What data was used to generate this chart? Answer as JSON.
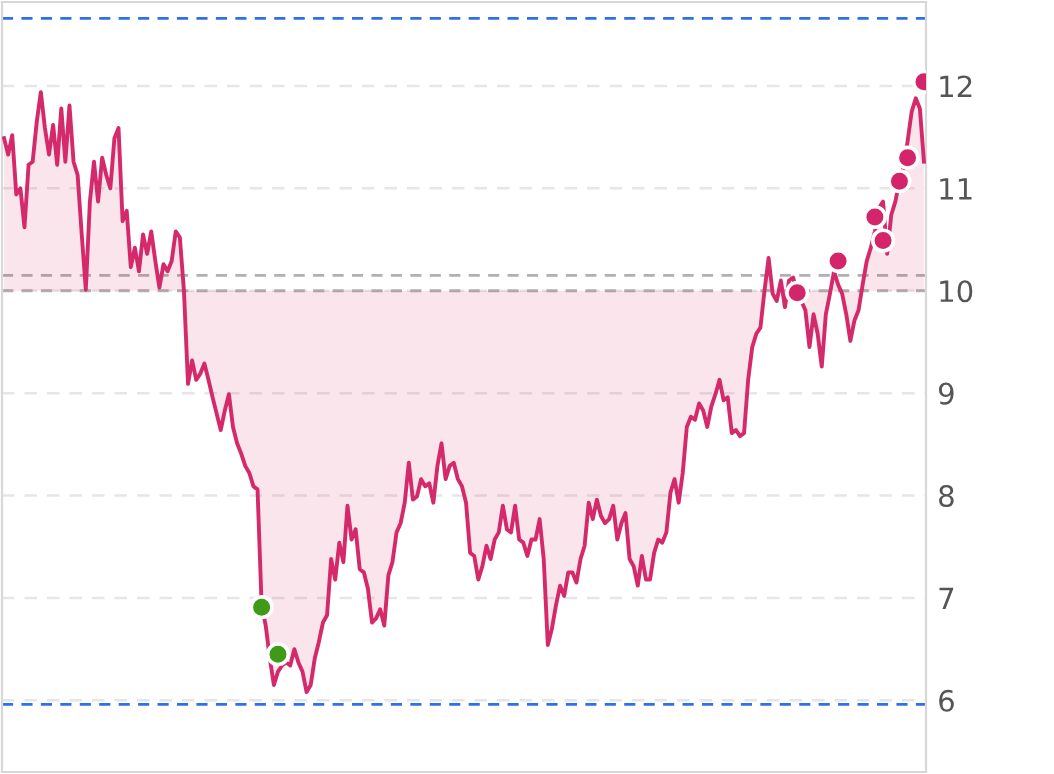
{
  "chart_data": {
    "type": "line",
    "categories": [
      null,
      null,
      null,
      null,
      null,
      null,
      null,
      null,
      null,
      null,
      null,
      null,
      null,
      null,
      null,
      null,
      null,
      null,
      null,
      null,
      null,
      null,
      null,
      null,
      null,
      null,
      null,
      null,
      null,
      null,
      null,
      null,
      null,
      null,
      null,
      null,
      null,
      null,
      null,
      null,
      null,
      null,
      null,
      null,
      null,
      null,
      null,
      null,
      null,
      null,
      null,
      null,
      null,
      null,
      null,
      null,
      null,
      null,
      null,
      null,
      null,
      null,
      null,
      null,
      null,
      null,
      null,
      null,
      null,
      null,
      null,
      null,
      null,
      null,
      null,
      null,
      null,
      null,
      null,
      null,
      null,
      null,
      null,
      null,
      null,
      null,
      null,
      null,
      null,
      null,
      null,
      null,
      null,
      null,
      null,
      null,
      null,
      null,
      null,
      null,
      null,
      null,
      null,
      null,
      null,
      null,
      null,
      null,
      null,
      null,
      null,
      null,
      null,
      null,
      null,
      null,
      null,
      null,
      null,
      null,
      null,
      null,
      null,
      null,
      null,
      null,
      null,
      null,
      null,
      null,
      null,
      null,
      null,
      null,
      null,
      null,
      null,
      null,
      null,
      null,
      null,
      null,
      null,
      null,
      null,
      null,
      null,
      null,
      null,
      null,
      null,
      null,
      null,
      null,
      null,
      null,
      null,
      null,
      null,
      null,
      null,
      null,
      null,
      null,
      null,
      null,
      null,
      null,
      null,
      null,
      null,
      null,
      null,
      null,
      null,
      null,
      null,
      null,
      null,
      null,
      null,
      null,
      null,
      null,
      null,
      null,
      null,
      null,
      null,
      null,
      null,
      null,
      null,
      null,
      null,
      null,
      null,
      null,
      null,
      null,
      null,
      null,
      null,
      null,
      null,
      null,
      null,
      null,
      null,
      null,
      null,
      null,
      null,
      null,
      null,
      null,
      null,
      null,
      null,
      null,
      null,
      null,
      null,
      null,
      null,
      null
    ],
    "ylim": [
      5.3,
      12.82
    ],
    "yticks": [
      6,
      7,
      8,
      9,
      10,
      11,
      12
    ],
    "tick_labels": "y",
    "grid": "y",
    "line_style": "solid",
    "ref_lines": [
      {
        "axis": "y",
        "value": 10.0,
        "color": "#b0b0b0",
        "line_style": "dashed"
      },
      {
        "axis": "y",
        "value": 10.15,
        "color": "#b0b0b0",
        "line_style": "dashed"
      },
      {
        "axis": "y",
        "value": 12.66,
        "color": "#2f6fe8",
        "line_style": "dashed"
      },
      {
        "axis": "y",
        "value": 5.96,
        "color": "#2f6fe8",
        "line_style": "dashed"
      }
    ],
    "series": [
      {
        "color": "#d42a6b",
        "values": [
          11.49,
          11.33,
          11.52,
          10.94,
          11.0,
          10.62,
          11.23,
          11.26,
          11.65,
          11.94,
          11.59,
          11.33,
          11.62,
          11.23,
          11.78,
          11.26,
          11.81,
          11.26,
          11.13,
          10.55,
          10.01,
          10.87,
          11.26,
          10.87,
          11.3,
          11.13,
          11.0,
          11.49,
          11.59,
          10.68,
          10.78,
          10.23,
          10.42,
          10.19,
          10.55,
          10.36,
          10.58,
          10.29,
          10.03,
          10.26,
          10.19,
          10.29,
          10.58,
          10.52,
          10.0,
          9.09,
          9.32,
          9.13,
          9.19,
          9.29,
          9.13,
          8.96,
          8.8,
          8.64,
          8.83,
          8.99,
          8.67,
          8.51,
          8.41,
          8.29,
          8.22,
          8.09,
          8.06,
          6.93,
          6.73,
          6.41,
          6.15,
          6.28,
          6.34,
          6.37,
          6.34,
          6.5,
          6.37,
          6.28,
          6.08,
          6.15,
          6.41,
          6.57,
          6.76,
          6.83,
          7.38,
          7.18,
          7.54,
          7.35,
          7.9,
          7.57,
          7.67,
          7.28,
          7.25,
          7.09,
          6.76,
          6.8,
          6.89,
          6.73,
          7.22,
          7.35,
          7.64,
          7.73,
          7.93,
          8.32,
          7.96,
          7.99,
          8.16,
          8.09,
          8.12,
          7.93,
          8.29,
          8.51,
          8.16,
          8.29,
          8.32,
          8.16,
          8.09,
          7.93,
          7.44,
          7.41,
          7.18,
          7.31,
          7.51,
          7.38,
          7.57,
          7.64,
          7.9,
          7.67,
          7.64,
          7.9,
          7.57,
          7.54,
          7.41,
          7.57,
          7.57,
          7.77,
          7.38,
          6.54,
          6.7,
          6.93,
          7.12,
          7.02,
          7.25,
          7.25,
          7.15,
          7.38,
          7.51,
          7.93,
          7.77,
          7.96,
          7.8,
          7.73,
          7.77,
          7.9,
          7.57,
          7.73,
          7.83,
          7.38,
          7.31,
          7.12,
          7.41,
          7.18,
          7.18,
          7.44,
          7.57,
          7.54,
          7.64,
          8.03,
          8.16,
          7.93,
          8.22,
          8.67,
          8.77,
          8.74,
          8.9,
          8.83,
          8.67,
          8.87,
          8.99,
          9.13,
          8.93,
          8.96,
          8.61,
          8.64,
          8.58,
          8.61,
          9.13,
          9.45,
          9.58,
          9.64,
          10.0,
          10.32,
          9.97,
          9.9,
          10.1,
          9.84,
          10.1,
          10.13,
          9.97,
          9.9,
          9.81,
          9.45,
          9.77,
          9.58,
          9.26,
          9.77,
          9.97,
          10.19,
          10.06,
          9.97,
          9.77,
          9.51,
          9.71,
          9.81,
          10.06,
          10.29,
          10.42,
          10.58,
          10.81,
          10.87,
          10.36,
          10.74,
          10.87,
          11.07,
          11.2,
          11.46,
          11.75,
          11.88,
          11.78,
          11.26
        ]
      },
      {
        "type": "scatter",
        "color": "#3f9a18",
        "values": [
          null,
          null,
          null,
          null,
          null,
          null,
          null,
          null,
          null,
          null,
          null,
          null,
          null,
          null,
          null,
          null,
          null,
          null,
          null,
          null,
          null,
          null,
          null,
          null,
          null,
          null,
          null,
          null,
          null,
          null,
          null,
          null,
          null,
          null,
          null,
          null,
          null,
          null,
          null,
          null,
          null,
          null,
          null,
          null,
          null,
          null,
          null,
          null,
          null,
          null,
          null,
          null,
          null,
          null,
          null,
          null,
          null,
          null,
          null,
          null,
          null,
          null,
          null,
          6.91,
          null,
          null,
          null,
          6.45,
          null,
          null,
          null,
          null,
          null,
          null,
          null,
          null,
          null,
          null,
          null,
          null,
          null,
          null,
          null,
          null,
          null,
          null,
          null,
          null,
          null,
          null,
          null,
          null,
          null,
          null,
          null,
          null,
          null,
          null,
          null,
          null,
          null,
          null,
          null,
          null,
          null,
          null,
          null,
          null,
          null,
          null,
          null,
          null,
          null,
          null,
          null,
          null,
          null,
          null,
          null,
          null,
          null,
          null,
          null,
          null,
          null,
          null,
          null,
          null,
          null,
          null,
          null,
          null,
          null,
          null,
          null,
          null,
          null,
          null,
          null,
          null,
          null,
          null,
          null,
          null,
          null,
          null,
          null,
          null,
          null,
          null,
          null,
          null,
          null,
          null,
          null,
          null,
          null,
          null,
          null,
          null,
          null,
          null,
          null,
          null,
          null,
          null,
          null,
          null,
          null,
          null,
          null,
          null,
          null,
          null,
          null,
          null,
          null,
          null,
          null,
          null,
          null,
          null,
          null,
          null,
          null,
          null,
          null,
          null,
          null,
          null,
          null,
          null,
          null,
          null,
          null,
          null,
          null,
          null,
          null,
          null,
          null,
          null,
          null,
          null,
          null,
          null,
          null,
          null,
          null,
          null,
          null,
          null,
          null,
          null,
          null,
          null,
          null,
          null,
          null,
          null,
          null,
          null,
          null,
          null,
          null,
          null
        ]
      },
      {
        "type": "scatter",
        "color": "#d4246a",
        "values": [
          null,
          null,
          null,
          null,
          null,
          null,
          null,
          null,
          null,
          null,
          null,
          null,
          null,
          null,
          null,
          null,
          null,
          null,
          null,
          null,
          null,
          null,
          null,
          null,
          null,
          null,
          null,
          null,
          null,
          null,
          null,
          null,
          null,
          null,
          null,
          null,
          null,
          null,
          null,
          null,
          null,
          null,
          null,
          null,
          null,
          null,
          null,
          null,
          null,
          null,
          null,
          null,
          null,
          null,
          null,
          null,
          null,
          null,
          null,
          null,
          null,
          null,
          null,
          null,
          null,
          null,
          null,
          null,
          null,
          null,
          null,
          null,
          null,
          null,
          null,
          null,
          null,
          null,
          null,
          null,
          null,
          null,
          null,
          null,
          null,
          null,
          null,
          null,
          null,
          null,
          null,
          null,
          null,
          null,
          null,
          null,
          null,
          null,
          null,
          null,
          null,
          null,
          null,
          null,
          null,
          null,
          null,
          null,
          null,
          null,
          null,
          null,
          null,
          null,
          null,
          null,
          null,
          null,
          null,
          null,
          null,
          null,
          null,
          null,
          null,
          null,
          null,
          null,
          null,
          null,
          null,
          null,
          null,
          null,
          null,
          null,
          null,
          null,
          null,
          null,
          null,
          null,
          null,
          null,
          null,
          null,
          null,
          null,
          null,
          null,
          null,
          null,
          null,
          null,
          null,
          null,
          null,
          null,
          null,
          null,
          null,
          null,
          null,
          null,
          null,
          null,
          null,
          null,
          null,
          null,
          null,
          null,
          null,
          null,
          null,
          null,
          null,
          null,
          null,
          null,
          null,
          null,
          null,
          null,
          null,
          null,
          null,
          null,
          null,
          null,
          null,
          null,
          null,
          null,
          9.98,
          null,
          null,
          null,
          null,
          null,
          null,
          null,
          null,
          null,
          10.29,
          null,
          null,
          null,
          null,
          null,
          null,
          null,
          null,
          10.72,
          null,
          10.49,
          null,
          null,
          null,
          11.07,
          null,
          11.3,
          null,
          null,
          null,
          12.04
        ]
      }
    ]
  }
}
